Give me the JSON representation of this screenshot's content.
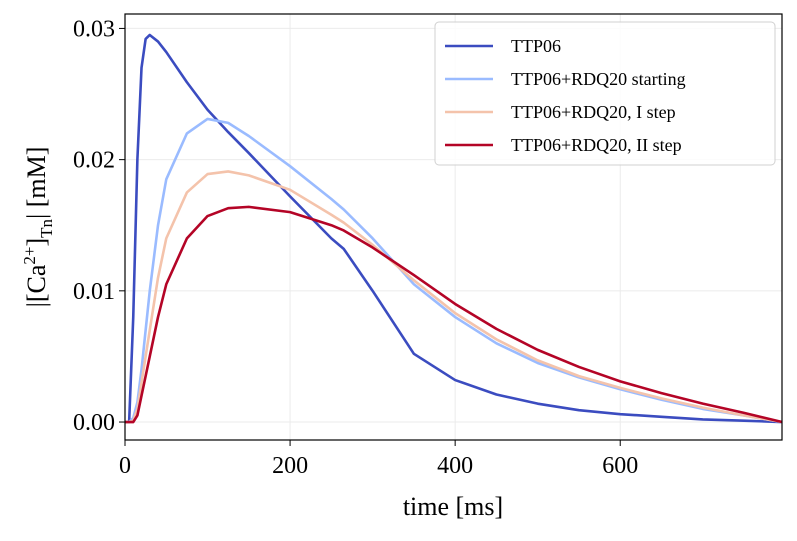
{
  "chart_data": {
    "type": "line",
    "xlabel": "time [ms]",
    "ylabel_parts": [
      "|[Ca",
      "2+",
      "]",
      "Tn",
      "| [mM]"
    ],
    "x": [
      0,
      5,
      10,
      15,
      20,
      25,
      30,
      40,
      50,
      75,
      100,
      125,
      150,
      200,
      250,
      265,
      300,
      350,
      400,
      450,
      500,
      550,
      600,
      650,
      700,
      750,
      796
    ],
    "series": [
      {
        "name": "TTP06",
        "color": "#3b4cc0",
        "values": [
          0,
          0,
          0.008,
          0.02,
          0.027,
          0.0292,
          0.0295,
          0.029,
          0.0282,
          0.0259,
          0.0238,
          0.0221,
          0.0205,
          0.0172,
          0.014,
          0.0132,
          0.01,
          0.0052,
          0.0032,
          0.0021,
          0.0014,
          0.0009,
          0.0006,
          0.0004,
          0.0002,
          0.0001,
          0
        ]
      },
      {
        "name": "TTP06+RDQ20 starting",
        "color": "#9abbff",
        "values": [
          0,
          0,
          0.0003,
          0.0015,
          0.004,
          0.007,
          0.01,
          0.015,
          0.0185,
          0.022,
          0.0231,
          0.0228,
          0.0218,
          0.0195,
          0.017,
          0.0162,
          0.014,
          0.0105,
          0.008,
          0.006,
          0.0045,
          0.0034,
          0.0025,
          0.0017,
          0.001,
          0.0005,
          0
        ]
      },
      {
        "name": "TTP06+RDQ20, I step",
        "color": "#f4c3ab",
        "values": [
          0,
          0,
          0.0001,
          0.001,
          0.003,
          0.005,
          0.007,
          0.011,
          0.014,
          0.0175,
          0.0189,
          0.0191,
          0.0188,
          0.0177,
          0.0158,
          0.0152,
          0.0135,
          0.0108,
          0.0083,
          0.0063,
          0.0047,
          0.0035,
          0.0026,
          0.0018,
          0.0011,
          0.0005,
          0
        ]
      },
      {
        "name": "TTP06+RDQ20, II step",
        "color": "#b40426",
        "values": [
          0,
          0,
          0,
          0.0005,
          0.002,
          0.0035,
          0.005,
          0.008,
          0.0105,
          0.014,
          0.0157,
          0.0163,
          0.0164,
          0.016,
          0.015,
          0.0146,
          0.0133,
          0.0112,
          0.009,
          0.0071,
          0.0055,
          0.0042,
          0.0031,
          0.0022,
          0.0014,
          0.0007,
          0
        ]
      }
    ],
    "xlim": [
      0,
      796
    ],
    "xticks": [
      0,
      200,
      400,
      600
    ],
    "ylim": [
      -0.00137,
      0.0311
    ],
    "yticks": [
      {
        "value": 0,
        "label": "0.00"
      },
      {
        "value": 0.01,
        "label": "0.01"
      },
      {
        "value": 0.02,
        "label": "0.02"
      },
      {
        "value": 0.03,
        "label": "0.03"
      }
    ],
    "grid": true,
    "legend": "upper right"
  }
}
